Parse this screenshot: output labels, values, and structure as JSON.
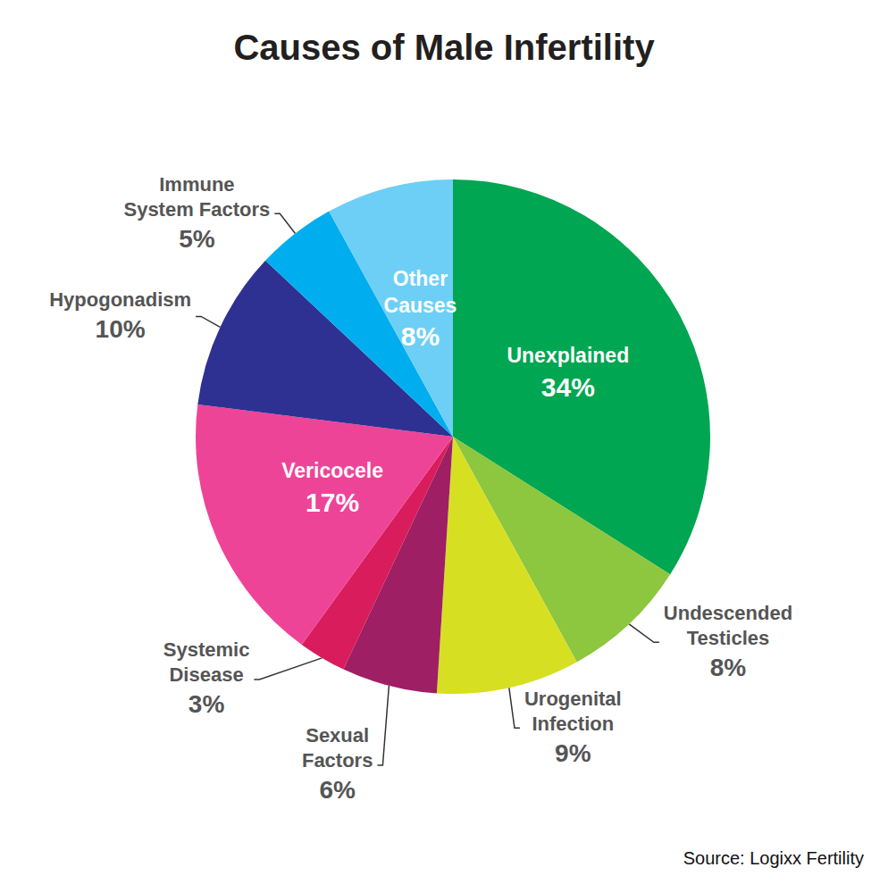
{
  "chart_data": {
    "type": "pie",
    "title": "Causes of Male Infertility",
    "annotations": [
      "Source: Logixx Fertility"
    ],
    "categories": [
      "Unexplained",
      "Undescended Testicles",
      "Urogenital Infection",
      "Sexual Factors",
      "Systemic Disease",
      "Vericocele",
      "Hypogonadism",
      "Immune System Factors",
      "Other Causes"
    ],
    "values": [
      34,
      8,
      9,
      6,
      3,
      17,
      10,
      5,
      8
    ],
    "value_labels": [
      "34%",
      "8%",
      "9%",
      "6%",
      "3%",
      "17%",
      "10%",
      "5%",
      "8%"
    ],
    "colors": [
      "#00a651",
      "#8dc63f",
      "#d7df23",
      "#9e1f63",
      "#d91c5c",
      "#ee4498",
      "#2e3192",
      "#00aeef",
      "#6dcff6"
    ],
    "data_labels": true
  }
}
